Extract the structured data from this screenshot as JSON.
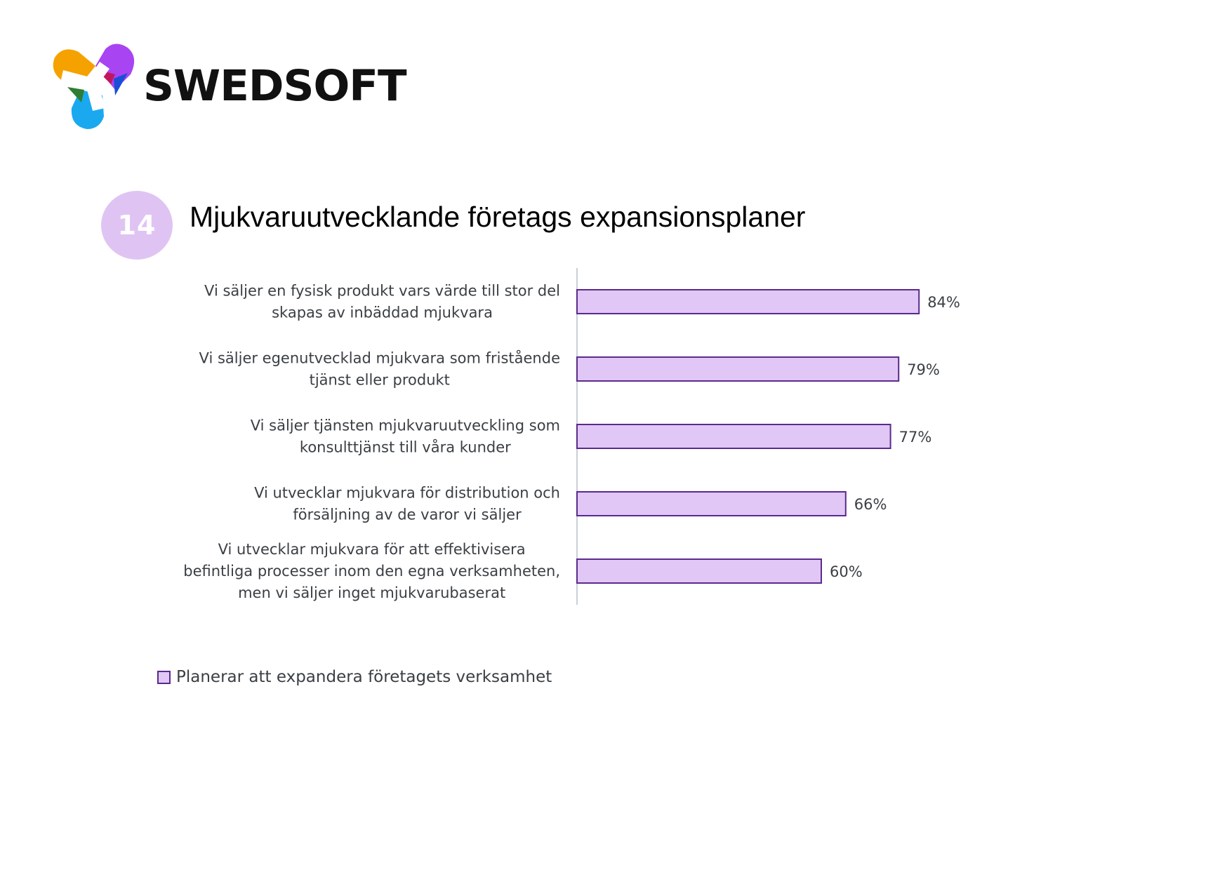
{
  "brand": {
    "name": "SWEDSOFT",
    "logo_colors": [
      "#f5a200",
      "#a844f2",
      "#c2185b",
      "#2196f3",
      "#1aa9ef",
      "#2e7d32",
      "#1a237e"
    ]
  },
  "slide": {
    "number": "14",
    "title": "Mjukvaruutvecklande företags expansionsplaner",
    "badge_color": "#dfc4f3"
  },
  "legend": {
    "label": "Planerar att expandera företagets verksamhet"
  },
  "chart_data": {
    "type": "bar",
    "orientation": "horizontal",
    "categories": [
      [
        "Vi säljer en fysisk produkt vars värde till stor del",
        "skapas av inbäddad mjukvara"
      ],
      [
        "Vi säljer egenutvecklad mjukvara som fristående",
        "tjänst eller produkt"
      ],
      [
        "Vi säljer tjänsten mjukvaruutveckling som",
        "konsulttjänst till våra kunder"
      ],
      [
        "Vi utvecklar mjukvara för  distribution och",
        "försäljning av de varor vi säljer"
      ],
      [
        "Vi utvecklar mjukvara för att effektivisera",
        "befintliga processer inom den egna verksamheten,",
        "men vi säljer inget mjukvarubaserat"
      ]
    ],
    "series": [
      {
        "name": "Planerar att expandera företagets verksamhet",
        "values": [
          84,
          79,
          77,
          66,
          60
        ],
        "labels": [
          "84%",
          "79%",
          "77%",
          "66%",
          "60%"
        ]
      }
    ],
    "xlim": [
      0,
      100
    ],
    "grid": false,
    "legend_position": "bottom-left",
    "bar_fill": "#e1c7f6",
    "bar_stroke": "#5b2a8c"
  }
}
